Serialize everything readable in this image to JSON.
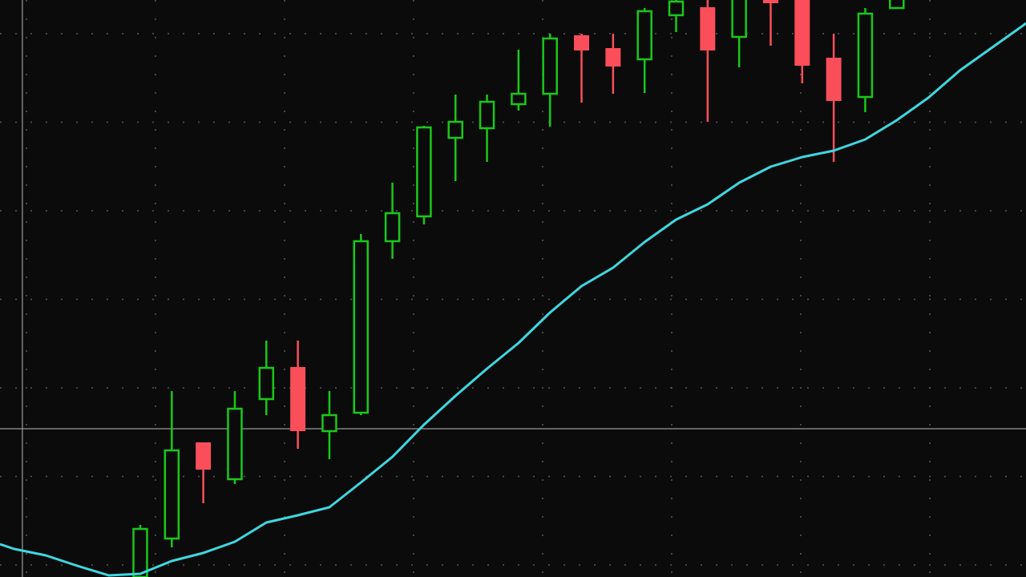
{
  "chart_data": {
    "type": "candlestick",
    "title": "",
    "xlabel": "",
    "ylabel": "",
    "grid": true,
    "xlim": [
      -4.45,
      28.1
    ],
    "ylim": [
      0,
      72
    ],
    "colors": {
      "background": "#0b0b0b",
      "up": "#19c819",
      "down": "#fa4f5a",
      "moving_average": "#3fd8e0",
      "grid": "#5a5a5a",
      "crosshair": "#9a9a9a"
    },
    "candles": [
      {
        "o": 0.0,
        "h": 6.5,
        "l": -0.2,
        "c": 6.0
      },
      {
        "o": 4.8,
        "h": 23.2,
        "l": 3.7,
        "c": 15.8
      },
      {
        "o": 16.8,
        "h": 16.8,
        "l": 9.2,
        "c": 13.4
      },
      {
        "o": 12.2,
        "h": 23.2,
        "l": 11.6,
        "c": 21.0
      },
      {
        "o": 22.2,
        "h": 29.5,
        "l": 20.2,
        "c": 26.1
      },
      {
        "o": 26.2,
        "h": 29.5,
        "l": 16.0,
        "c": 18.2
      },
      {
        "o": 18.2,
        "h": 23.2,
        "l": 14.7,
        "c": 20.2
      },
      {
        "o": 20.5,
        "h": 42.8,
        "l": 20.2,
        "c": 41.9
      },
      {
        "o": 41.9,
        "h": 49.2,
        "l": 39.7,
        "c": 45.4
      },
      {
        "o": 45.0,
        "h": 56.3,
        "l": 44.0,
        "c": 56.1
      },
      {
        "o": 54.8,
        "h": 60.2,
        "l": 49.4,
        "c": 56.8
      },
      {
        "o": 56.0,
        "h": 60.2,
        "l": 51.8,
        "c": 59.3
      },
      {
        "o": 59.0,
        "h": 65.8,
        "l": 58.2,
        "c": 60.3
      },
      {
        "o": 60.3,
        "h": 67.8,
        "l": 56.2,
        "c": 67.2
      },
      {
        "o": 67.6,
        "h": 67.8,
        "l": 59.2,
        "c": 65.7
      },
      {
        "o": 66.0,
        "h": 67.8,
        "l": 60.3,
        "c": 63.7
      },
      {
        "o": 64.6,
        "h": 71.0,
        "l": 60.4,
        "c": 70.6
      },
      {
        "o": 70.1,
        "h": 72.5,
        "l": 68.0,
        "c": 71.8
      },
      {
        "o": 71.1,
        "h": 72.0,
        "l": 56.8,
        "c": 65.7
      },
      {
        "o": 67.4,
        "h": 73.0,
        "l": 63.6,
        "c": 72.5
      },
      {
        "o": 73.0,
        "h": 73.0,
        "l": 66.3,
        "c": 71.6
      },
      {
        "o": 73.0,
        "h": 73.0,
        "l": 61.6,
        "c": 63.8
      },
      {
        "o": 64.8,
        "h": 67.8,
        "l": 51.8,
        "c": 59.4
      },
      {
        "o": 59.9,
        "h": 71.0,
        "l": 58.0,
        "c": 70.3
      },
      {
        "o": 71.0,
        "h": 73.0,
        "l": 71.0,
        "c": 73.0
      }
    ],
    "moving_average": {
      "start_index": -4,
      "values": [
        3.5,
        2.7,
        1.4,
        0.2,
        0.4,
        2.0,
        3.0,
        4.4,
        6.8,
        7.7,
        8.7,
        11.8,
        15.0,
        19.0,
        22.6,
        26.0,
        29.2,
        33.0,
        36.3,
        38.6,
        41.8,
        44.6,
        46.5,
        49.2,
        51.2,
        52.4,
        53.2,
        54.6,
        57.0,
        59.8,
        63.2,
        66.0,
        68.8
      ]
    },
    "crosshair": {
      "index": -3.74,
      "price": 18.5
    }
  }
}
